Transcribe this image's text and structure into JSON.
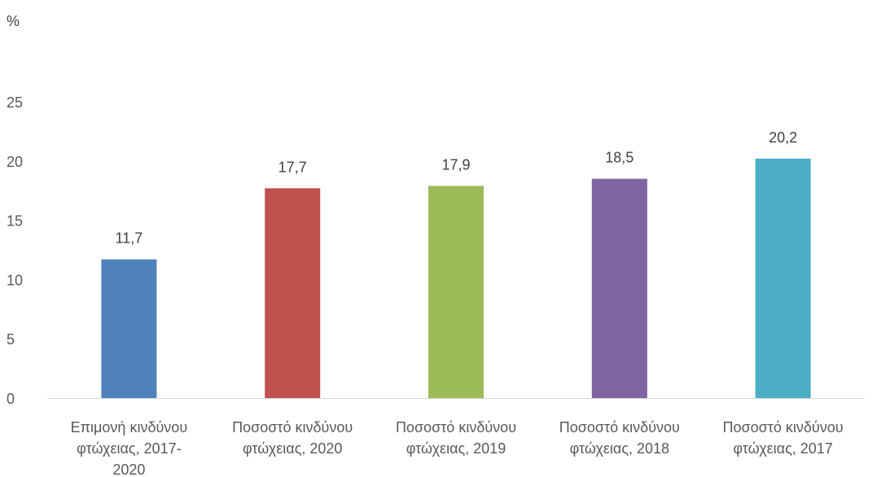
{
  "chart_data": {
    "type": "bar",
    "title": "",
    "xlabel": "",
    "ylabel": "%",
    "ylim": [
      0,
      25
    ],
    "yticks": [
      0,
      5,
      10,
      15,
      20,
      25
    ],
    "grid": false,
    "legend": "none",
    "categories": [
      "Επιμονή κινδύνου φτώχειας, 2017-2020",
      "Ποσοστό κινδύνου φτώχειας, 2020",
      "Ποσοστό κινδύνου φτώχειας, 2019",
      "Ποσοστό κινδύνου φτώχειας, 2018",
      "Ποσοστό κινδύνου φτώχειας, 2017"
    ],
    "category_lines": [
      [
        "Επιμονή κινδύνου",
        "φτώχειας, 2017-",
        "2020"
      ],
      [
        "Ποσοστό κινδύνου",
        "φτώχειας, 2020"
      ],
      [
        "Ποσοστό κινδύνου",
        "φτώχειας, 2019"
      ],
      [
        "Ποσοστό κινδύνου",
        "φτώχειας, 2018"
      ],
      [
        "Ποσοστό κινδύνου",
        "φτώχειας, 2017"
      ]
    ],
    "values": [
      11.7,
      17.7,
      17.9,
      18.5,
      20.2
    ],
    "value_labels": [
      "11,7",
      "17,7",
      "17,9",
      "18,5",
      "20,2"
    ],
    "colors": [
      "#4f81bd",
      "#c0504d",
      "#9bbb59",
      "#8064a2",
      "#4bacc6"
    ]
  }
}
